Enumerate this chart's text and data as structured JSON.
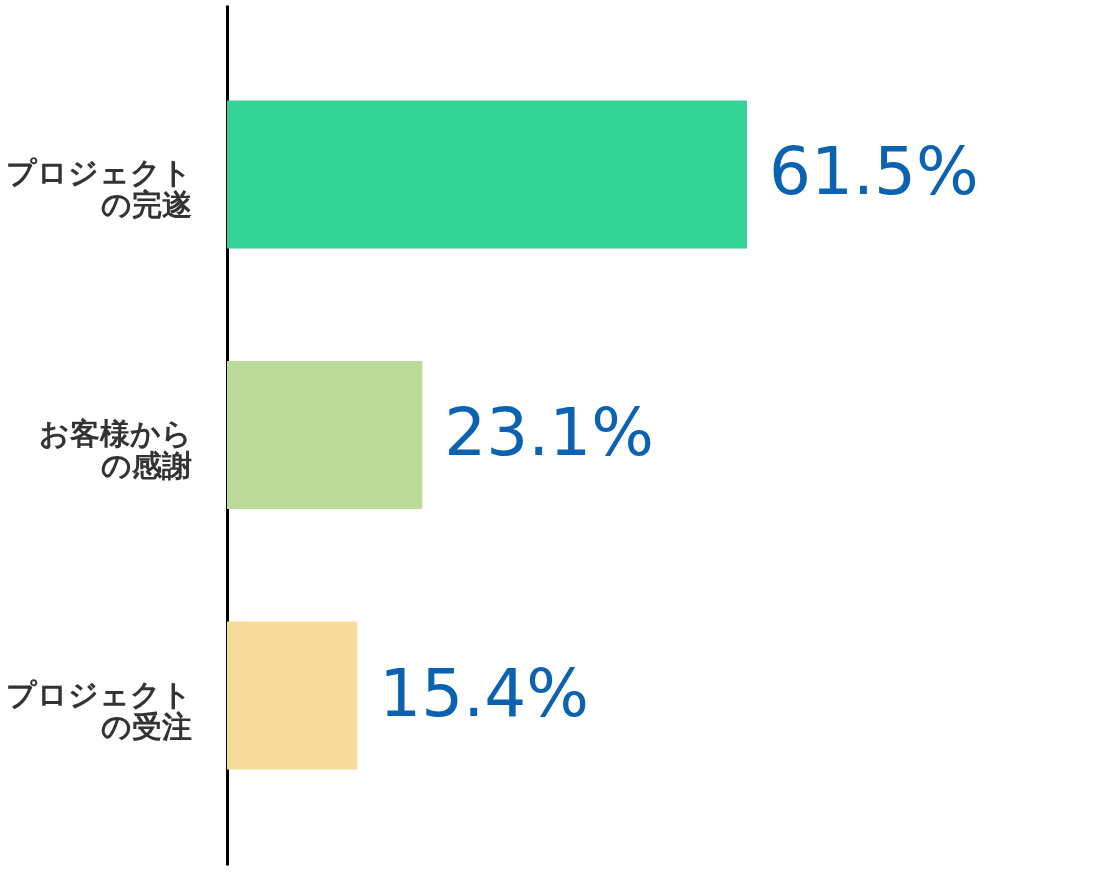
{
  "chart_data": {
    "type": "bar",
    "orientation": "horizontal",
    "categories": [
      "プロジェクトの完遂",
      "お客様からの感謝",
      "プロジェクトの受注"
    ],
    "values": [
      61.5,
      23.1,
      15.4
    ],
    "colors": [
      "#33d398",
      "#bcdb98",
      "#f8db98"
    ],
    "value_labels": [
      "61.5%",
      "23.1%",
      "15.4%"
    ]
  }
}
